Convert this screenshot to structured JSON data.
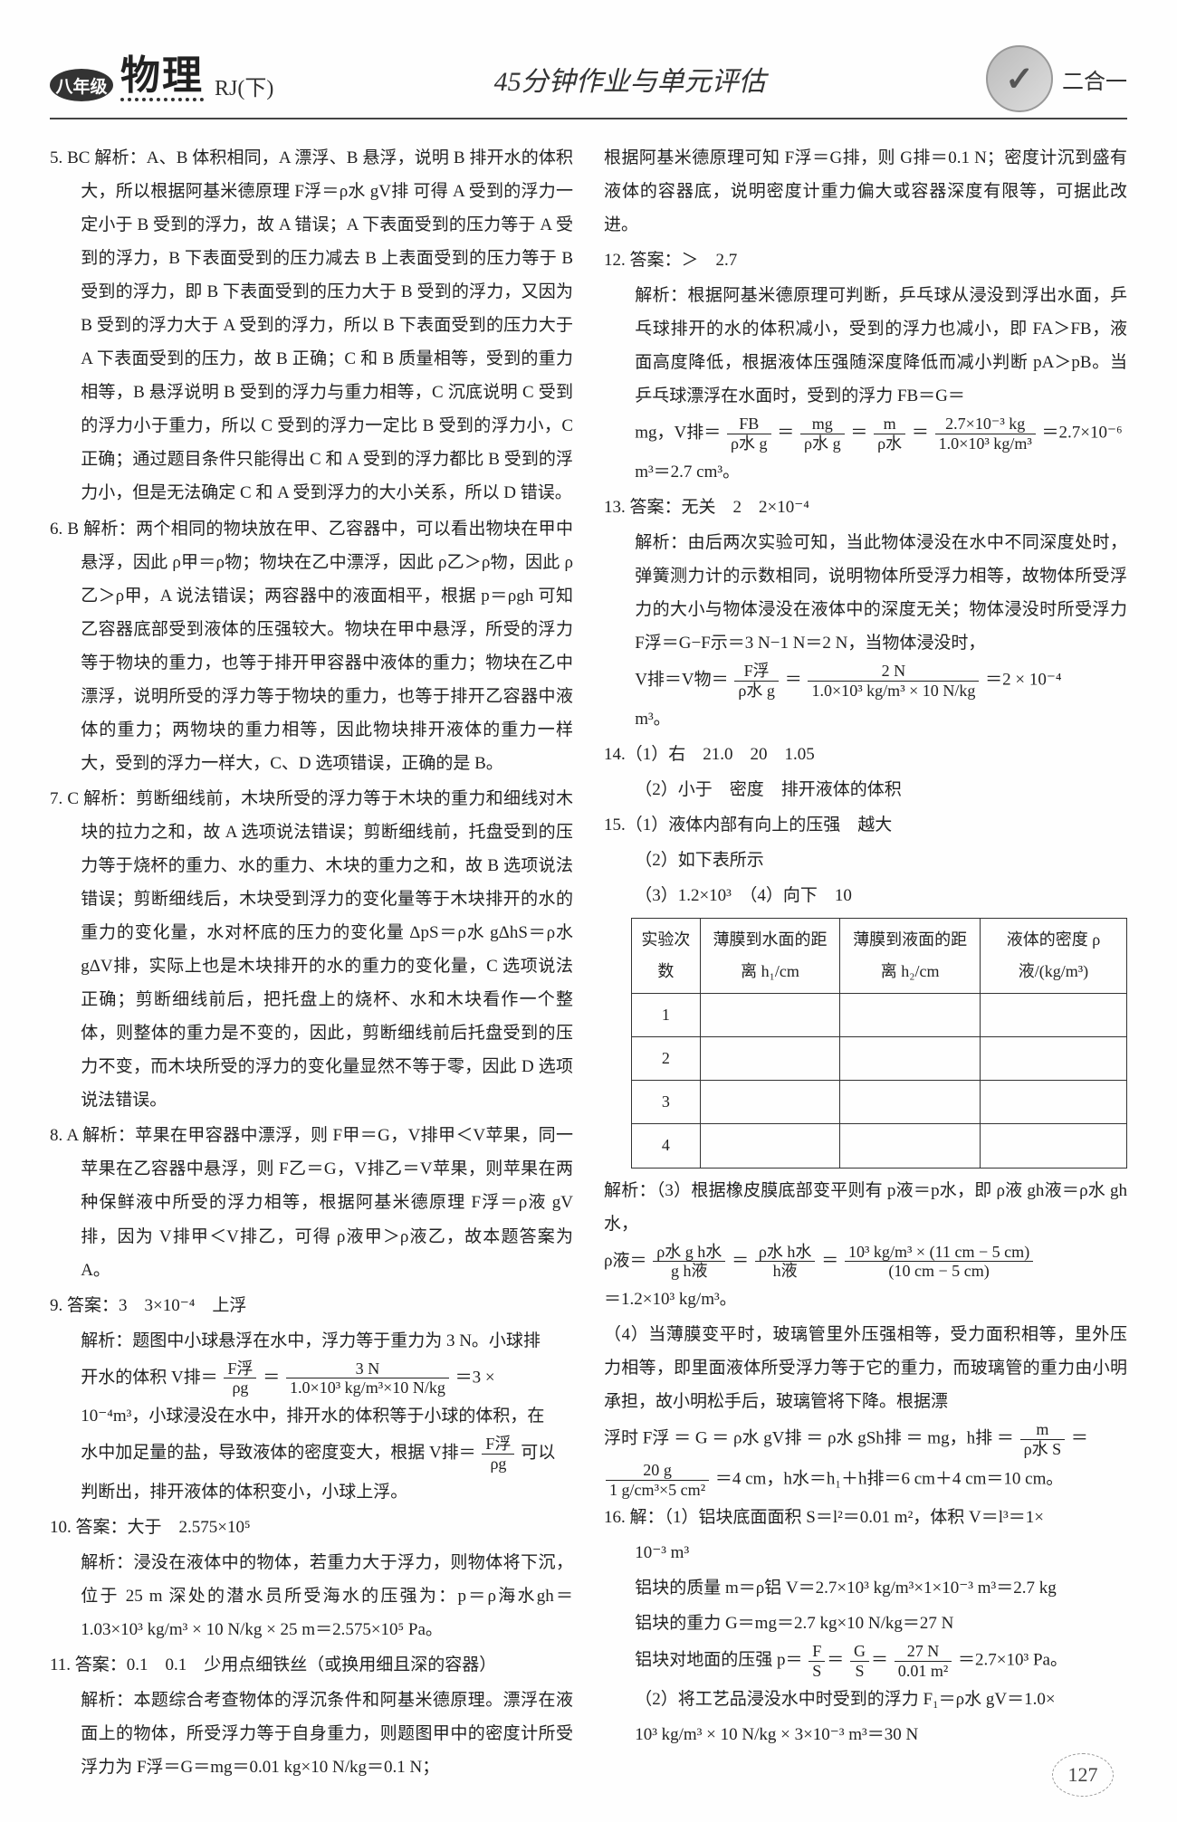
{
  "header": {
    "grade": "八年级",
    "subject": "物理",
    "edition": "RJ(下)",
    "center_title": "45分钟作业与单元评估",
    "combo": "二合一"
  },
  "pagenum": "127",
  "q5": {
    "label": "5. BC",
    "body": "解析：A、B 体积相同，A 漂浮、B 悬浮，说明 B 排开水的体积大，所以根据阿基米德原理 F浮＝ρ水 gV排 可得 A 受到的浮力一定小于 B 受到的浮力，故 A 错误；A 下表面受到的压力等于 A 受到的浮力，B 下表面受到的压力减去 B 上表面受到的压力等于 B 受到的浮力，即 B 下表面受到的压力大于 B 受到的浮力，又因为 B 受到的浮力大于 A 受到的浮力，所以 B 下表面受到的压力大于 A 下表面受到的压力，故 B 正确；C 和 B 质量相等，受到的重力相等，B 悬浮说明 B 受到的浮力与重力相等，C 沉底说明 C 受到的浮力小于重力，所以 C 受到的浮力一定比 B 受到的浮力小，C 正确；通过题目条件只能得出 C 和 A 受到的浮力都比 B 受到的浮力小，但是无法确定 C 和 A 受到浮力的大小关系，所以 D 错误。"
  },
  "q6": {
    "label": "6. B",
    "body": "解析：两个相同的物块放在甲、乙容器中，可以看出物块在甲中悬浮，因此 ρ甲＝ρ物；物块在乙中漂浮，因此 ρ乙＞ρ物，因此 ρ乙＞ρ甲，A 说法错误；两容器中的液面相平，根据 p＝ρgh 可知乙容器底部受到液体的压强较大。物块在甲中悬浮，所受的浮力等于物块的重力，也等于排开甲容器中液体的重力；物块在乙中漂浮，说明所受的浮力等于物块的重力，也等于排开乙容器中液体的重力；两物块的重力相等，因此物块排开液体的重力一样大，受到的浮力一样大，C、D 选项错误，正确的是 B。"
  },
  "q7": {
    "label": "7. C",
    "body": "解析：剪断细线前，木块所受的浮力等于木块的重力和细线对木块的拉力之和，故 A 选项说法错误；剪断细线前，托盘受到的压力等于烧杯的重力、水的重力、木块的重力之和，故 B 选项说法错误；剪断细线后，木块受到浮力的变化量等于木块排开的水的重力的变化量，水对杯底的压力的变化量 ΔpS＝ρ水 gΔhS＝ρ水 gΔV排，实际上也是木块排开的水的重力的变化量，C 选项说法正确；剪断细线前后，把托盘上的烧杯、水和木块看作一个整体，则整体的重力是不变的，因此，剪断细线前后托盘受到的压力不变，而木块所受的浮力的变化量显然不等于零，因此 D 选项说法错误。"
  },
  "q8": {
    "label": "8. A",
    "body": "解析：苹果在甲容器中漂浮，则 F甲＝G，V排甲＜V苹果，同一苹果在乙容器中悬浮，则 F乙＝G，V排乙＝V苹果，则苹果在两种保鲜液中所受的浮力相等，根据阿基米德原理 F浮＝ρ液 gV排，因为 V排甲＜V排乙，可得 ρ液甲＞ρ液乙，故本题答案为 A。"
  },
  "q9": {
    "label": "9. 答案：3　3×10⁻⁴　上浮",
    "body1": "解析：题图中小球悬浮在水中，浮力等于重力为 3 N。小球排",
    "eq_pre": "开水的体积 V排＝",
    "eq_num": "F浮",
    "eq_den": "ρg",
    "eq_eq": "＝",
    "eq_num2": "3 N",
    "eq_den2": "1.0×10³ kg/m³×10 N/kg",
    "eq_res": "＝3 ×",
    "body2": "10⁻⁴m³，小球浸没在水中，排开水的体积等于小球的体积，在",
    "body3a": "水中加足量的盐，导致液体的密度变大，根据 V排＝",
    "body3_num": "F浮",
    "body3_den": "ρg",
    "body3b": "可以",
    "body4": "判断出，排开液体的体积变小，小球上浮。"
  },
  "q10": {
    "label": "10. 答案：大于　2.575×10⁵",
    "body": "解析：浸没在液体中的物体，若重力大于浮力，则物体将下沉，位于 25 m 深处的潜水员所受海水的压强为：p＝ρ海水gh＝1.03×10³ kg/m³ × 10 N/kg × 25 m＝2.575×10⁵ Pa。"
  },
  "q11": {
    "label": "11. 答案：0.1　0.1　少用点细铁丝（或换用细且深的容器）",
    "body": "解析：本题综合考查物体的浮沉条件和阿基米德原理。漂浮在液面上的物体，所受浮力等于自身重力，则题图甲中的密度计所受浮力为 F浮＝G＝mg＝0.01 kg×10 N/kg＝0.1 N；"
  },
  "r11b": "根据阿基米德原理可知 F浮＝G排，则 G排＝0.1 N；密度计沉到盛有液体的容器底，说明密度计重力偏大或容器深度有限等，可据此改进。",
  "q12": {
    "label": "12. 答案：＞　2.7",
    "body1": "解析：根据阿基米德原理可判断，乒乓球从浸没到浮出水面，乒乓球排开的水的体积减小，受到的浮力也减小，即 FA＞FB，液面高度降低，根据液体压强随深度降低而减小判断 pA＞pB。当乒乓球漂浮在水面时，受到的浮力 FB＝G＝",
    "eq_pre": "mg，V排＝",
    "n1": "FB",
    "d1": "ρ水 g",
    "eqs": "＝",
    "n2": "mg",
    "d2": "ρ水 g",
    "n3": "m",
    "d3": "ρ水",
    "n4": "2.7×10⁻³ kg",
    "d4": "1.0×10³ kg/m³",
    "res": "＝2.7×10⁻⁶",
    "body2": "m³＝2.7 cm³。"
  },
  "q13": {
    "label": "13. 答案：无关　2　2×10⁻⁴",
    "body1": "解析：由后两次实验可知，当此物体浸没在水中不同深度处时，弹簧测力计的示数相同，说明物体所受浮力相等，故物体所受浮力的大小与物体浸没在液体中的深度无关；物体浸没时所受浮力 F浮＝G−F示＝3 N−1 N＝2 N，当物体浸没时，",
    "eq_pre": "V排＝V物＝",
    "n1": "F浮",
    "d1": "ρ水 g",
    "eqs": "＝",
    "n2": "2 N",
    "d2": "1.0×10³ kg/m³ × 10 N/kg",
    "res": "＝2 × 10⁻⁴",
    "body2": "m³。"
  },
  "q14": {
    "l1": "14.（1）右　21.0　20　1.05",
    "l2": "（2）小于　密度　排开液体的体积"
  },
  "q15": {
    "l1": "15.（1）液体内部有向上的压强　越大",
    "l2": "（2）如下表所示",
    "l3": "（3）1.2×10³　（4）向下　10",
    "table_headers": [
      "实验次数",
      "薄膜到水面的距离 h₁/cm",
      "薄膜到液面的距离 h₂/cm",
      "液体的密度 ρ液/(kg/m³)"
    ],
    "rows": [
      "1",
      "2",
      "3",
      "4"
    ],
    "a3a": "解析：（3）根据橡皮膜底部变平则有 p液＝p水，即 ρ液 gh液＝ρ水 gh水，",
    "a3pre": "ρ液＝",
    "a3n1": "ρ水 g h水",
    "a3d1": "g h液",
    "a3eq": "＝",
    "a3n2": "ρ水 h水",
    "a3d2": "h液",
    "a3n3": "10³ kg/m³ × (11 cm − 5 cm)",
    "a3d3": "(10 cm − 5 cm)",
    "a3res": "＝1.2×10³ kg/m³。",
    "a4a": "（4）当薄膜变平时，玻璃管里外压强相等，受力面积相等，里外压力相等，即里面液体所受浮力等于它的重力，而玻璃管的重力由小明承担，故小明松手后，玻璃管将下降。根据漂",
    "a4pre": "浮时  F浮 ＝ G ＝ ρ水  gV排 ＝ ρ水  gSh排 ＝ mg，h排 ＝",
    "a4n1": "m",
    "a4d1": "ρ水 S",
    "a4mid": "＝",
    "a4n2": "20 g",
    "a4d2": "1 g/cm³×5 cm²",
    "a4res": "＝4 cm，h水＝h₁＋h排＝6 cm＋4 cm＝10 cm。"
  },
  "q16": {
    "label": "16. 解：（1）铝块底面面积 S＝l²＝0.01 m²，体积 V＝l³＝1×",
    "l1b": "10⁻³ m³",
    "l2": "铝块的质量 m＝ρ铝 V＝2.7×10³ kg/m³×1×10⁻³ m³＝2.7 kg",
    "l3": "铝块的重力 G＝mg＝2.7 kg×10 N/kg＝27 N",
    "l4pre": "铝块对地面的压强 p＝",
    "l4n1": "F",
    "l4d1": "S",
    "l4n2": "G",
    "l4d2": "S",
    "l4n3": "27 N",
    "l4d3": "0.01 m²",
    "l4res": "＝2.7×10³ Pa。",
    "l5": "（2）将工艺品浸没水中时受到的浮力 F₁＝ρ水 gV＝1.0×",
    "l6": "10³ kg/m³ × 10 N/kg × 3×10⁻³ m³＝30 N"
  }
}
